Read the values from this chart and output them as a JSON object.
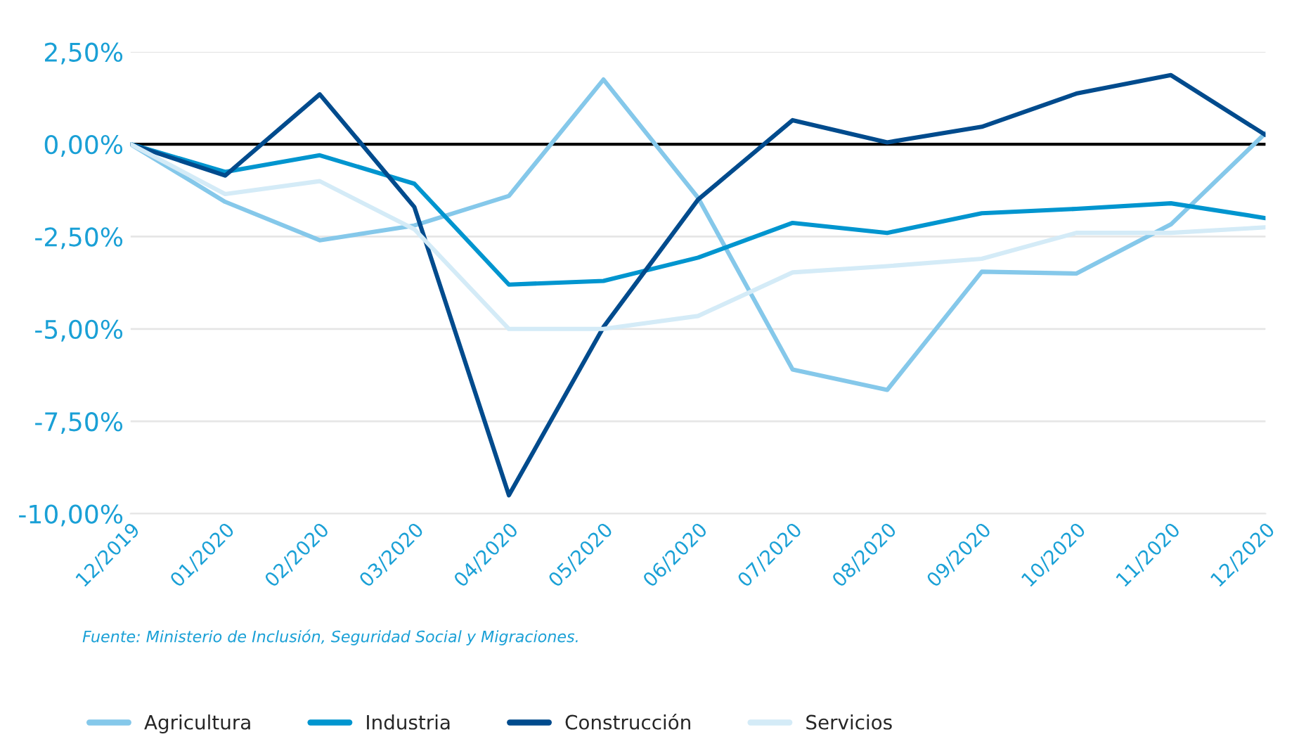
{
  "chart_data": {
    "type": "line",
    "categories": [
      "12/2019",
      "01/2020",
      "02/2020",
      "03/2020",
      "04/2020",
      "05/2020",
      "06/2020",
      "07/2020",
      "08/2020",
      "09/2020",
      "10/2020",
      "11/2020",
      "12/2020"
    ],
    "series": [
      {
        "name": "Agricultura",
        "color": "#85c8ea",
        "values": [
          0,
          -1.56,
          -2.6,
          -2.2,
          -1.4,
          1.75,
          -1.45,
          -6.1,
          -6.65,
          -3.45,
          -3.5,
          -2.17,
          0.3
        ]
      },
      {
        "name": "Industria",
        "color": "#0095cf",
        "values": [
          0,
          -0.75,
          -0.3,
          -1.07,
          -3.8,
          -3.7,
          -3.07,
          -2.13,
          -2.4,
          -1.87,
          -1.75,
          -1.6,
          -2.0
        ]
      },
      {
        "name": "Construcción",
        "color": "#004b8d",
        "values": [
          0,
          -0.85,
          1.35,
          -1.7,
          -9.5,
          -4.95,
          -1.5,
          0.65,
          0.05,
          0.47,
          1.37,
          1.87,
          0.25
        ]
      },
      {
        "name": "Servicios",
        "color": "#d4ebf7",
        "values": [
          0,
          -1.35,
          -1.0,
          -2.3,
          -5.0,
          -5.0,
          -4.65,
          -3.47,
          -3.3,
          -3.1,
          -2.4,
          -2.4,
          -2.25
        ]
      }
    ],
    "ylim": [
      -10,
      2.5
    ],
    "yticks": [
      {
        "value": -10,
        "label": "-10,00%"
      },
      {
        "value": -7.5,
        "label": "-7,50%"
      },
      {
        "value": -5,
        "label": "-5,00%"
      },
      {
        "value": -2.5,
        "label": "-2,50%"
      },
      {
        "value": 0,
        "label": "0,00%"
      },
      {
        "value": 2.5,
        "label": "2,50%"
      }
    ],
    "ref_lines": [
      {
        "axis": "y",
        "value": 0,
        "label": null,
        "color": "#000000"
      }
    ],
    "grid": "y",
    "legend": "bottom",
    "marker": "none",
    "line_style": "solid",
    "annotations": [
      "Fuente: Ministerio de Inclusión, Seguridad Social y Migraciones."
    ]
  }
}
